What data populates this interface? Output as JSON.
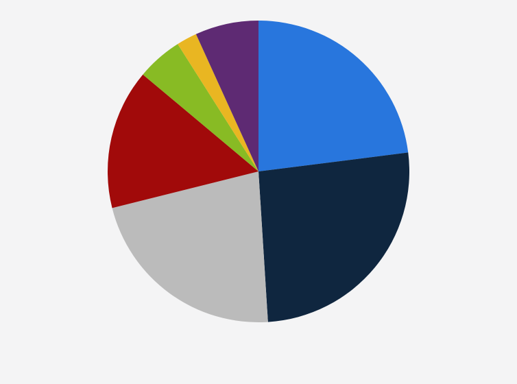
{
  "chart_data": {
    "type": "pie",
    "values": [
      23.0,
      26.0,
      22.1,
      15.0,
      4.9,
      2.2,
      6.8
    ],
    "colors": [
      "#2876dd",
      "#0f263f",
      "#bbbbbb",
      "#a10a0a",
      "#88bb24",
      "#e9b622",
      "#5e2a73"
    ]
  }
}
